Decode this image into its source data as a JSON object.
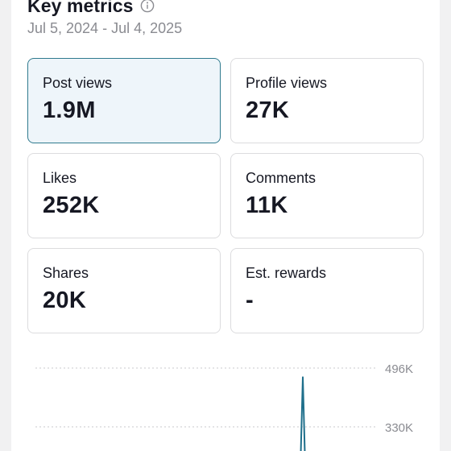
{
  "header": {
    "title": "Key metrics",
    "date_range": "Jul 5, 2024 - Jul 4, 2025"
  },
  "icons": {
    "info": "info-circle-icon"
  },
  "metrics": [
    {
      "label": "Post views",
      "value": "1.9M",
      "selected": true
    },
    {
      "label": "Profile views",
      "value": "27K",
      "selected": false
    },
    {
      "label": "Likes",
      "value": "252K",
      "selected": false
    },
    {
      "label": "Comments",
      "value": "11K",
      "selected": false
    },
    {
      "label": "Shares",
      "value": "20K",
      "selected": false
    },
    {
      "label": "Est. rewards",
      "value": "-",
      "selected": false
    }
  ],
  "chart_data": {
    "type": "line",
    "series_color": "#1f6f8b",
    "grid": true,
    "y_tick_labels": [
      "496K",
      "330K"
    ],
    "y_ticks": [
      496000,
      330000
    ],
    "visible_points": [
      {
        "x": 0.0,
        "y": 0
      },
      {
        "x": 0.992,
        "y": 0
      },
      {
        "x": 1.0,
        "y": 470000
      },
      {
        "x": 1.008,
        "y": 0
      },
      {
        "x": 1.0,
        "y": 0
      }
    ]
  }
}
